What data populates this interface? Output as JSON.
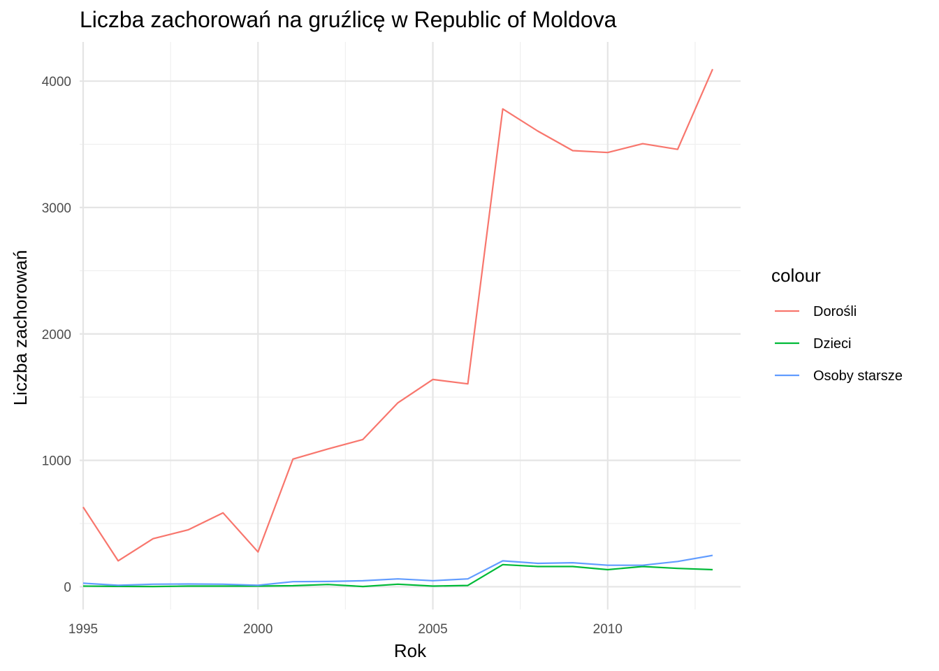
{
  "chart_data": {
    "type": "line",
    "title": "Liczba zachorowań na gruźlicę w Republic of Moldova",
    "xlabel": "Rok",
    "ylabel": "Liczba zachorowań",
    "xlim": [
      1994.9,
      2013.8
    ],
    "ylim": [
      -180,
      4310
    ],
    "x_ticks": [
      1995,
      2000,
      2005,
      2010
    ],
    "x_minor": [
      1997.5,
      2002.5,
      2007.5,
      2012.5
    ],
    "y_ticks": [
      0,
      1000,
      2000,
      3000,
      4000
    ],
    "y_minor": [
      500,
      1500,
      2500,
      3500
    ],
    "grid": true,
    "legend": {
      "title": "colour",
      "position": "right"
    },
    "x": [
      1995,
      1996,
      1997,
      1998,
      1999,
      2000,
      2001,
      2002,
      2003,
      2004,
      2005,
      2006,
      2007,
      2008,
      2009,
      2010,
      2011,
      2012,
      2013
    ],
    "series": [
      {
        "name": "Dorośli",
        "color": "#F8766D",
        "values": [
          630,
          205,
          380,
          450,
          585,
          275,
          1010,
          1090,
          1165,
          1455,
          1640,
          1605,
          3780,
          3605,
          3450,
          3435,
          3505,
          3460,
          4095
        ]
      },
      {
        "name": "Dzieci",
        "color": "#00BA38",
        "values": [
          5,
          3,
          2,
          5,
          5,
          5,
          8,
          18,
          2,
          20,
          5,
          10,
          175,
          160,
          160,
          135,
          160,
          145,
          135
        ]
      },
      {
        "name": "Osoby starsze",
        "color": "#619CFF",
        "values": [
          28,
          12,
          20,
          22,
          20,
          12,
          40,
          42,
          47,
          62,
          48,
          62,
          205,
          185,
          190,
          170,
          170,
          200,
          248
        ]
      }
    ]
  }
}
